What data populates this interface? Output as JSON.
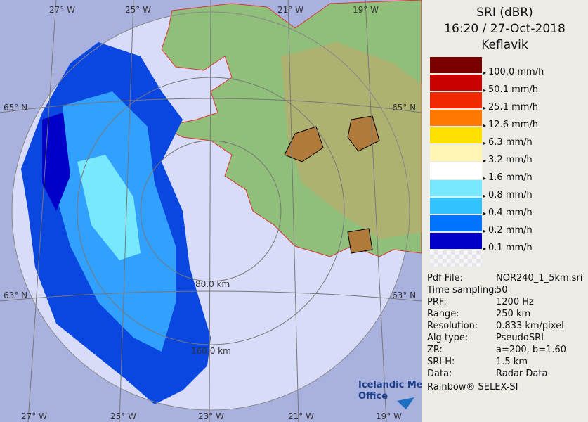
{
  "header": {
    "title": "SRI (dBR)",
    "time": "16:20 / 27-Oct-2018",
    "site": "Keflavik"
  },
  "legend": [
    {
      "color": "#7a0000",
      "label": "100.0 mm/h"
    },
    {
      "color": "#c80000",
      "label": "50.1 mm/h"
    },
    {
      "color": "#f02800",
      "label": "25.1 mm/h"
    },
    {
      "color": "#ff7800",
      "label": "12.6 mm/h"
    },
    {
      "color": "#ffe100",
      "label": "6.3 mm/h"
    },
    {
      "color": "#fff5b4",
      "label": "3.2 mm/h"
    },
    {
      "color": "#ffffff",
      "label": "1.6 mm/h"
    },
    {
      "color": "#78e8ff",
      "label": "0.8 mm/h"
    },
    {
      "color": "#32c3ff",
      "label": "0.4 mm/h"
    },
    {
      "color": "#0073ff",
      "label": "0.2 mm/h"
    },
    {
      "color": "#0000c8",
      "label": "0.1 mm/h"
    }
  ],
  "info": [
    [
      "Pdf File:",
      "NOR240_1_5km.sri"
    ],
    [
      "Time sampling:",
      "50"
    ],
    [
      "PRF:",
      "1200 Hz"
    ],
    [
      "Range:",
      "250 km"
    ],
    [
      "Resolution:",
      "0.833 km/pixel"
    ],
    [
      "Alg type:",
      "PseudoSRI"
    ],
    [
      "ZR:",
      "a=200, b=1.60"
    ],
    [
      "SRI H:",
      "1.5 km"
    ],
    [
      "Data:",
      "Radar Data"
    ]
  ],
  "footer": "Rainbow® SELEX-SI",
  "map": {
    "lon_labels": [
      "27° W",
      "25° W",
      "23° W",
      "21° W",
      "19° W"
    ],
    "lat_labels": [
      "65° N",
      "63° N"
    ],
    "rings": [
      "80.0 km",
      "160.0 km"
    ],
    "logo": [
      "Icelandic Met",
      "Office"
    ]
  }
}
